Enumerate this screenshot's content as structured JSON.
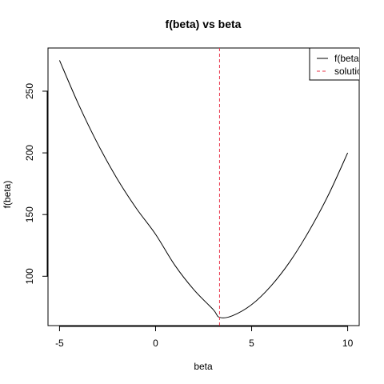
{
  "chart_data": {
    "type": "line",
    "title": "f(beta) vs beta",
    "xlabel": "beta",
    "ylabel": "f(beta)",
    "xlim": [
      -5.6,
      10.6
    ],
    "ylim": [
      60,
      285
    ],
    "x_ticks": [
      -5,
      0,
      5,
      10
    ],
    "y_ticks": [
      100,
      150,
      200,
      250
    ],
    "grid": false,
    "legend_position": "top-right",
    "series": [
      {
        "name": "f(beta)",
        "color": "#000000",
        "style": "solid",
        "x": [
          -5,
          -4,
          -3,
          -2,
          -1,
          0,
          1,
          2,
          3,
          3.33,
          4,
          5,
          6,
          7,
          8,
          9,
          10
        ],
        "y": [
          275,
          239,
          207,
          179,
          155,
          134,
          109,
          89,
          73,
          66.7,
          68,
          77,
          92,
          112,
          137,
          166,
          200
        ]
      },
      {
        "name": "solution",
        "color": "#e8354a",
        "style": "dashed",
        "vline_x": 3.33
      }
    ]
  }
}
